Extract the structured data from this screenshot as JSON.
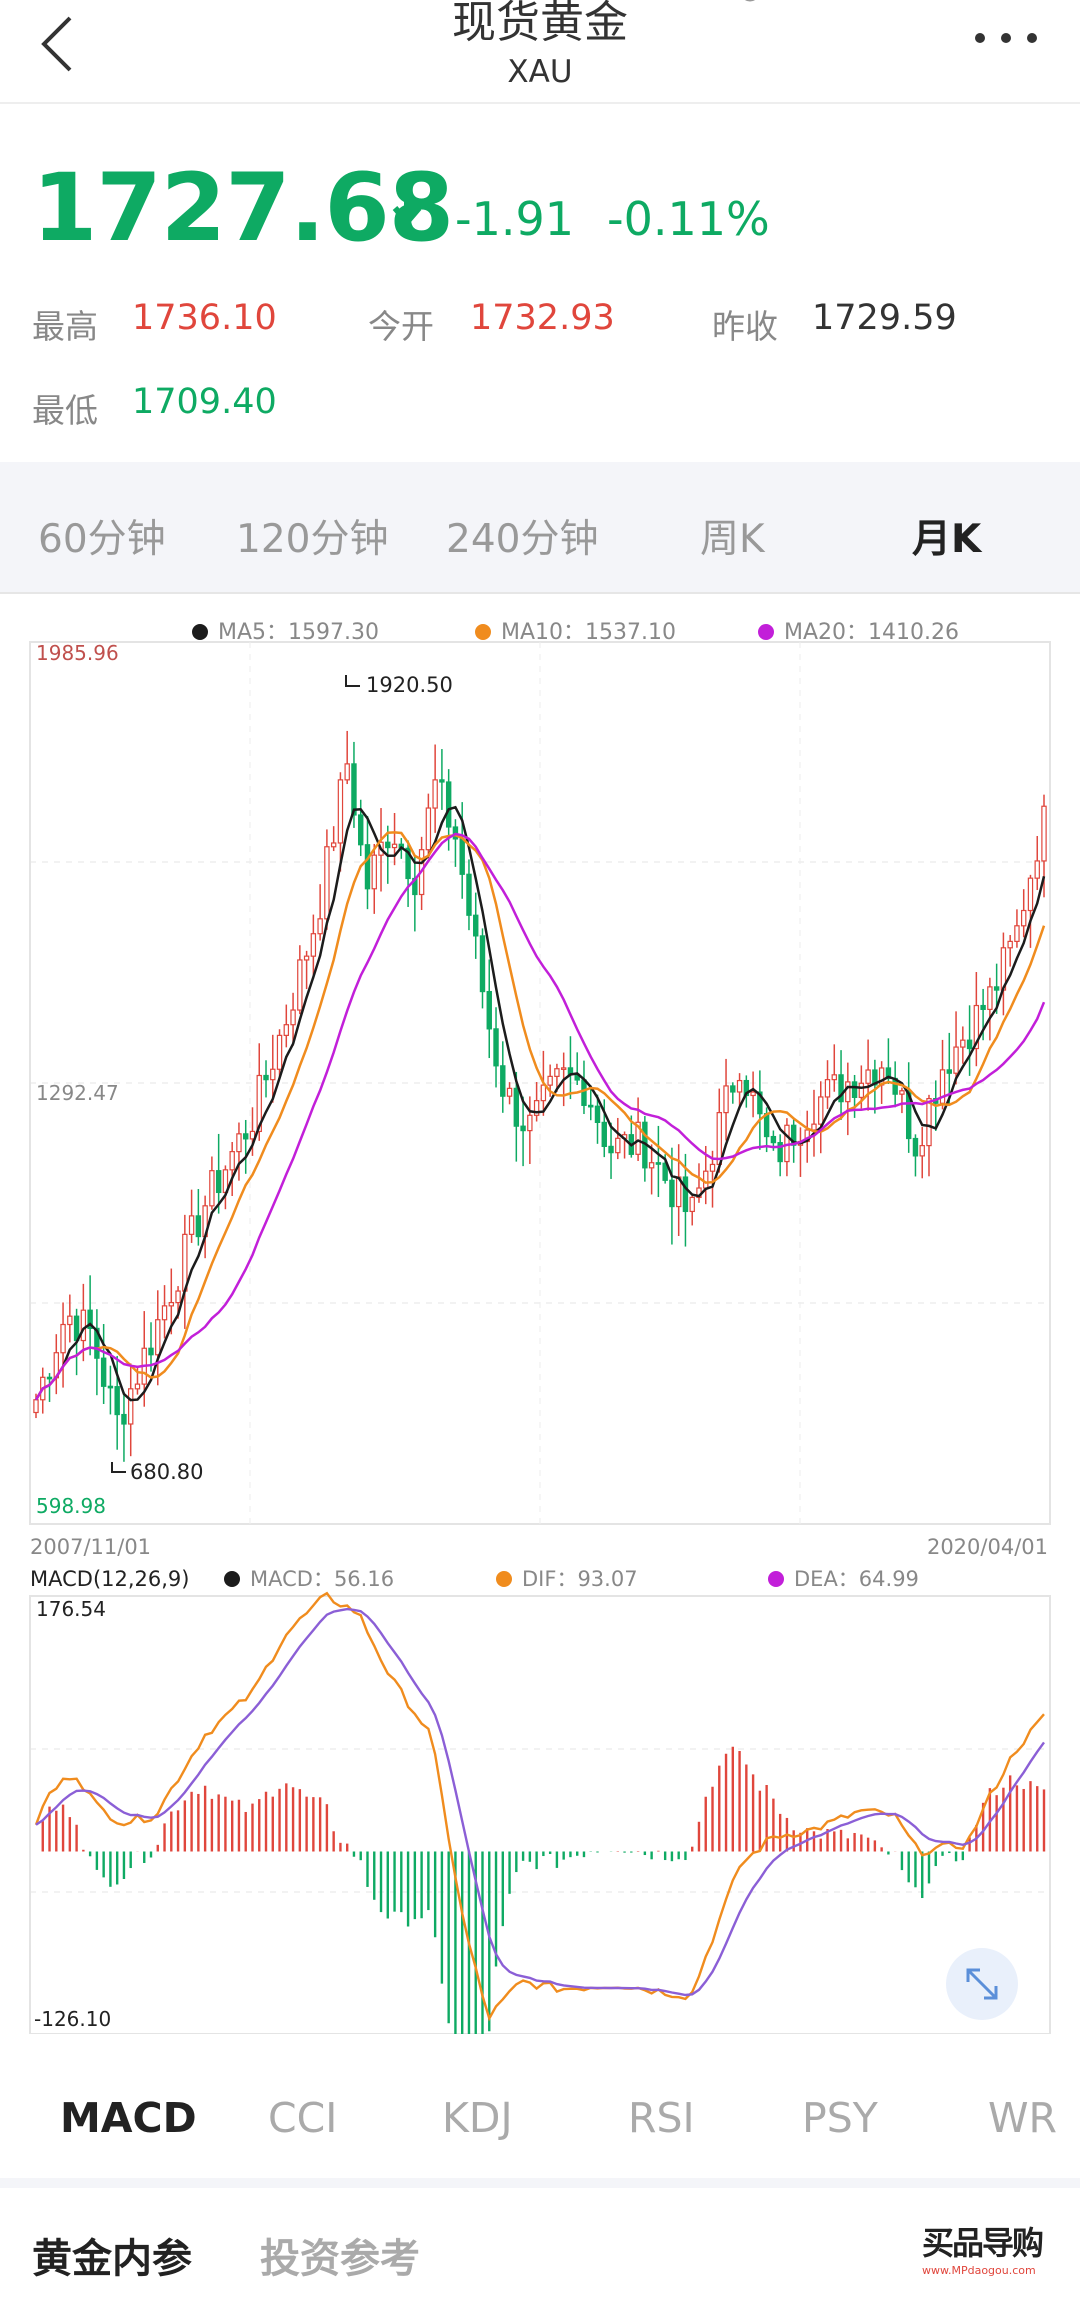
{
  "header": {
    "title": "现货黄金",
    "subtitle": "XAU"
  },
  "quote": {
    "price": "1727.68",
    "change": "-1.91",
    "change_pct": "-0.11%",
    "high_label": "最高",
    "high": "1736.10",
    "open_label": "今开",
    "open": "1732.93",
    "prev_close_label": "昨收",
    "prev_close": "1729.59",
    "low_label": "最低",
    "low": "1709.40"
  },
  "periods": [
    "60分钟",
    "120分钟",
    "240分钟",
    "周K",
    "月K"
  ],
  "active_period": "月K",
  "colors": {
    "up": "#e0463c",
    "down": "#0eaa63",
    "ma5": "#1c1c1c",
    "ma10": "#f08c1e",
    "ma20": "#c21fd9",
    "accent": "#0eaa63"
  },
  "kline": {
    "ma5_label": "MA5：1597.30",
    "ma10_label": "MA10：1537.10",
    "ma20_label": "MA20：1410.26",
    "y_max": "1985.96",
    "y_mid": "1292.47",
    "y_min": "598.98",
    "peak_label": "1920.50",
    "trough_label": "680.80",
    "x_start": "2007/11/01",
    "x_end": "2020/04/01"
  },
  "macd": {
    "title": "MACD(12,26,9)",
    "macd_label": "MACD：56.16",
    "dif_label": "DIF：93.07",
    "dea_label": "DEA：64.99",
    "y_max": "176.54",
    "y_min": "-126.10"
  },
  "chart_data": {
    "type": "candlestick",
    "x_range": [
      "2007/11/01",
      "2020/04/01"
    ],
    "ylim": [
      598.98,
      1985.96
    ],
    "annotations": [
      {
        "label": "1920.50",
        "value": 1920.5
      },
      {
        "label": "680.80",
        "value": 680.8
      }
    ],
    "close_anchors": [
      [
        2007.83,
        795
      ],
      [
        2008.2,
        930
      ],
      [
        2008.5,
        900
      ],
      [
        2008.83,
        760
      ],
      [
        2009.25,
        890
      ],
      [
        2009.9,
        1100
      ],
      [
        2010.5,
        1240
      ],
      [
        2010.9,
        1390
      ],
      [
        2011.3,
        1560
      ],
      [
        2011.67,
        1800
      ],
      [
        2011.9,
        1600
      ],
      [
        2012.2,
        1700
      ],
      [
        2012.5,
        1620
      ],
      [
        2012.75,
        1760
      ],
      [
        2013.0,
        1680
      ],
      [
        2013.4,
        1390
      ],
      [
        2013.6,
        1280
      ],
      [
        2013.9,
        1220
      ],
      [
        2014.3,
        1300
      ],
      [
        2014.6,
        1290
      ],
      [
        2014.9,
        1190
      ],
      [
        2015.3,
        1200
      ],
      [
        2015.9,
        1080
      ],
      [
        2016.5,
        1330
      ],
      [
        2016.9,
        1170
      ],
      [
        2017.4,
        1260
      ],
      [
        2017.9,
        1300
      ],
      [
        2018.3,
        1330
      ],
      [
        2018.67,
        1200
      ],
      [
        2019.0,
        1320
      ],
      [
        2019.6,
        1430
      ],
      [
        2019.9,
        1520
      ],
      [
        2020.0,
        1580
      ],
      [
        2020.15,
        1660
      ],
      [
        2020.25,
        1727.68
      ]
    ],
    "macd_anchors": [
      [
        2007.83,
        20
      ],
      [
        2008.0,
        40
      ],
      [
        2008.3,
        55
      ],
      [
        2008.6,
        30
      ],
      [
        2008.9,
        20
      ],
      [
        2009.3,
        25
      ],
      [
        2009.9,
        80
      ],
      [
        2010.5,
        110
      ],
      [
        2010.9,
        150
      ],
      [
        2011.4,
        176.54
      ],
      [
        2011.8,
        165
      ],
      [
        2012.2,
        120
      ],
      [
        2012.7,
        80
      ],
      [
        2013.1,
        -50
      ],
      [
        2013.4,
        -115
      ],
      [
        2013.8,
        -90
      ],
      [
        2014.3,
        -95
      ],
      [
        2015.0,
        -92
      ],
      [
        2015.9,
        -100
      ],
      [
        2016.5,
        -10
      ],
      [
        2016.9,
        10
      ],
      [
        2017.4,
        15
      ],
      [
        2018.0,
        28
      ],
      [
        2018.4,
        25
      ],
      [
        2018.7,
        0
      ],
      [
        2019.3,
        5
      ],
      [
        2019.6,
        40
      ],
      [
        2019.9,
        70
      ],
      [
        2020.25,
        93.07
      ]
    ]
  },
  "indicators": [
    "MACD",
    "CCI",
    "KDJ",
    "RSI",
    "PSY",
    "WR"
  ],
  "active_indicator": "MACD",
  "bottom_tabs": [
    "黄金内参",
    "投资参考"
  ],
  "active_bottom_tab": "黄金内参",
  "watermark": {
    "brand": "买品导购",
    "url": "www.MPdaogou.com"
  }
}
